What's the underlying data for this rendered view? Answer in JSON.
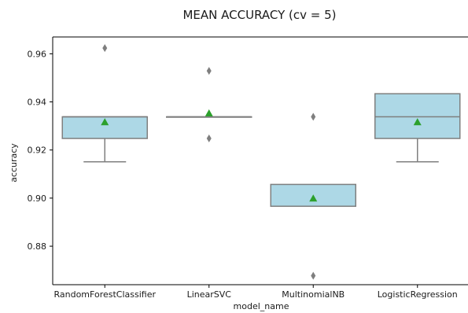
{
  "chart_data": {
    "type": "box",
    "title": "MEAN ACCURACY (cv = 5)",
    "xlabel": "model_name",
    "ylabel": "accuracy",
    "ylim": [
      0.864,
      0.967
    ],
    "yticks": [
      "0.88",
      "0.90",
      "0.92",
      "0.94",
      "0.96"
    ],
    "grid": false,
    "categories": [
      "RandomForestClassifier",
      "LinearSVC",
      "MultinomialNB",
      "LogisticRegression"
    ],
    "boxes": [
      {
        "name": "RandomForestClassifier",
        "whisker_low": 0.9151,
        "q1": 0.9248,
        "median": 0.9338,
        "q3": 0.9338,
        "whisker_high": 0.9338,
        "mean": 0.9316,
        "outliers": [
          0.9624
        ]
      },
      {
        "name": "LinearSVC",
        "whisker_low": 0.9338,
        "q1": 0.9338,
        "median": 0.9338,
        "q3": 0.9338,
        "whisker_high": 0.9338,
        "mean": 0.9353,
        "outliers": [
          0.9529,
          0.9248
        ]
      },
      {
        "name": "MultinomialNB",
        "whisker_low": 0.8966,
        "q1": 0.8966,
        "median": 0.8966,
        "q3": 0.9057,
        "whisker_high": 0.9057,
        "mean": 0.8999,
        "outliers": [
          0.9338,
          0.8677
        ]
      },
      {
        "name": "LogisticRegression",
        "whisker_low": 0.9151,
        "q1": 0.9248,
        "median": 0.9338,
        "q3": 0.9434,
        "whisker_high": 0.9434,
        "mean": 0.9316,
        "outliers": []
      }
    ],
    "colors": {
      "box": "#add8e6",
      "line": "#7f7f7f",
      "mean": "#2ca02c",
      "outlier": "#7f7f7f",
      "axis": "#000000"
    }
  }
}
